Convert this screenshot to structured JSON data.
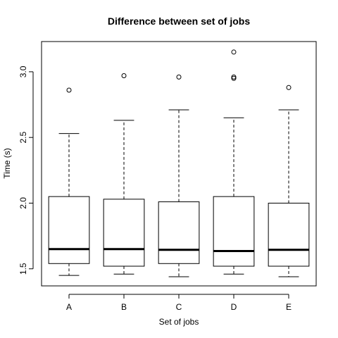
{
  "chart_data": {
    "type": "boxplot",
    "title": "Difference between set of jobs",
    "xlabel": "Set of jobs",
    "ylabel": "Time (s)",
    "ylim": [
      1.37,
      3.23
    ],
    "yticks": [
      1.5,
      2.0,
      2.5,
      3.0
    ],
    "ytick_labels": [
      "1.5",
      "2.0",
      "2.5",
      "3.0"
    ],
    "categories": [
      "A",
      "B",
      "C",
      "D",
      "E"
    ],
    "boxes": [
      {
        "category": "A",
        "whisker_low": 1.45,
        "q1": 1.54,
        "median": 1.65,
        "q3": 2.05,
        "whisker_high": 2.53,
        "outliers": [
          2.86
        ]
      },
      {
        "category": "B",
        "whisker_low": 1.46,
        "q1": 1.52,
        "median": 1.65,
        "q3": 2.03,
        "whisker_high": 2.63,
        "outliers": [
          2.97
        ]
      },
      {
        "category": "C",
        "whisker_low": 1.44,
        "q1": 1.54,
        "median": 1.645,
        "q3": 2.01,
        "whisker_high": 2.71,
        "outliers": [
          2.96
        ]
      },
      {
        "category": "D",
        "whisker_low": 1.46,
        "q1": 1.52,
        "median": 1.635,
        "q3": 2.05,
        "whisker_high": 2.65,
        "outliers": [
          2.95,
          2.96,
          3.15
        ]
      },
      {
        "category": "E",
        "whisker_low": 1.44,
        "q1": 1.52,
        "median": 1.645,
        "q3": 2.0,
        "whisker_high": 2.71,
        "outliers": [
          2.88
        ]
      }
    ],
    "grid": false,
    "legend": "none"
  }
}
